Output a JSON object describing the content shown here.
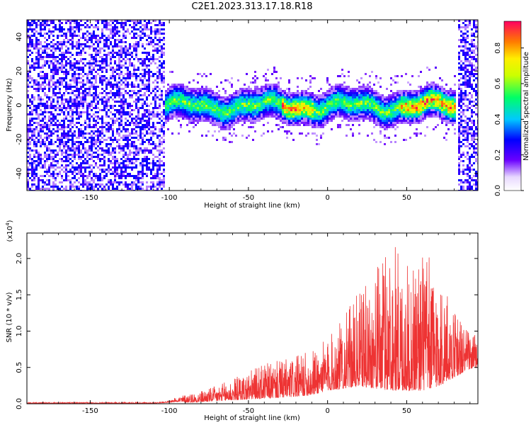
{
  "title": "C2E1.2023.313.17.18.R18",
  "chart_data": [
    {
      "type": "heatmap",
      "xlabel": "Height of straight line (km)",
      "ylabel": "Frequency (Hz)",
      "xlim": [
        -190,
        95
      ],
      "ylim": [
        -50,
        50
      ],
      "x_ticks": [
        -150,
        -100,
        -50,
        0,
        50
      ],
      "y_ticks": [
        -40,
        -20,
        0,
        20,
        40
      ],
      "colorbar": {
        "label": "Normalized spectral amplitude",
        "range": [
          0,
          0.95
        ],
        "ticks": [
          0.0,
          0.2,
          0.4,
          0.6,
          0.8
        ]
      },
      "features": {
        "noise_regions_km": [
          [
            -190,
            -103
          ],
          [
            82,
            95
          ]
        ],
        "signal_band_km": [
          -108,
          81
        ],
        "signal_band_frequency_hz": [
          -8,
          8
        ],
        "max_amplitude_segments_km": [
          [
            -30,
            -10
          ],
          [
            45,
            80
          ]
        ]
      }
    },
    {
      "type": "line",
      "xlabel": "Height of straight line (km)",
      "ylabel": "SNR (10 * v/v)",
      "y_multiplier": "(x10^4)",
      "xlim": [
        -190,
        95
      ],
      "ylim": [
        0,
        2.35
      ],
      "x_ticks": [
        -150,
        -100,
        -50,
        0,
        50
      ],
      "y_ticks": [
        0.0,
        0.5,
        1.0,
        1.5,
        2.0
      ],
      "color": "#ee3333",
      "envelope": {
        "x": [
          -190,
          -150,
          -110,
          -100,
          -95,
          -90,
          -80,
          -70,
          -60,
          -50,
          -40,
          -30,
          -20,
          -10,
          0,
          10,
          20,
          30,
          40,
          50,
          60,
          70,
          80,
          90,
          95
        ],
        "baseline": [
          0.01,
          0.01,
          0.01,
          0.03,
          0.05,
          0.03,
          0.04,
          0.06,
          0.08,
          0.1,
          0.12,
          0.14,
          0.16,
          0.2,
          0.3,
          0.35,
          0.4,
          0.35,
          0.3,
          0.3,
          0.3,
          0.4,
          0.6,
          0.8,
          0.82
        ],
        "peak": [
          0.02,
          0.02,
          0.02,
          0.04,
          0.1,
          0.13,
          0.18,
          0.25,
          0.35,
          0.45,
          0.55,
          0.6,
          0.65,
          0.75,
          0.9,
          1.2,
          1.55,
          1.8,
          2.35,
          1.9,
          2.2,
          1.8,
          1.3,
          1.0,
          0.95
        ]
      }
    }
  ]
}
